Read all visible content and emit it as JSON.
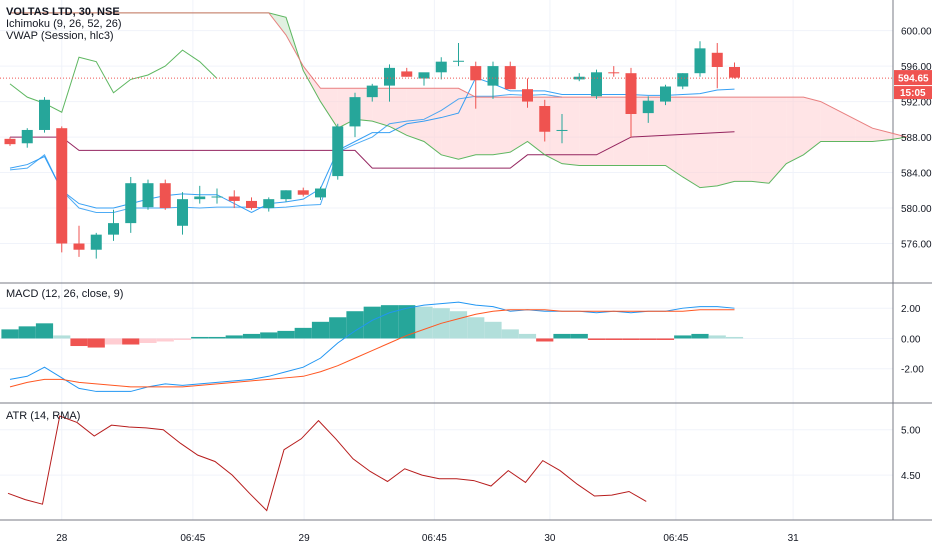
{
  "legend": {
    "symbol": "VOLTAS LTD, 30, NSE",
    "ichimoku": "Ichimoku (9, 26, 52, 26)",
    "vwap": "VWAP (Session, hlc3)"
  },
  "price_badge": {
    "price": "594.65",
    "countdown": "15:05"
  },
  "colors": {
    "up": "#26a69a",
    "down": "#ef5350",
    "macd": "#2196f3",
    "signal": "#ff5722",
    "tenkan": "#2196f3",
    "kijun": "#880e4f",
    "span_a": "#4caf50",
    "span_b": "#e57373",
    "chikou": "#4caf50",
    "vwap": "#2196f3",
    "atr": "#b71c1c",
    "cloud_bull": "#c8e6c9",
    "cloud_bear": "#ffcdd2"
  },
  "chart_data": [
    {
      "type": "candlestick",
      "title": "VOLTAS LTD, 30, NSE",
      "ylim": [
        572,
        603
      ],
      "y_ticks": [
        "576.00",
        "580.00",
        "584.00",
        "588.00",
        "592.00",
        "596.00",
        "600.00"
      ],
      "x_ticks": [
        "28",
        "06:45",
        "29",
        "06:45",
        "30",
        "06:45",
        "31"
      ],
      "last_price": 594.65,
      "candles": [
        [
          587.8,
          588.0,
          587.0,
          587.2
        ],
        [
          587.3,
          589.0,
          586.8,
          588.8
        ],
        [
          588.8,
          592.5,
          588.5,
          592.2
        ],
        [
          589.0,
          589.2,
          575.0,
          576.0
        ],
        [
          576.0,
          578.0,
          574.5,
          575.3
        ],
        [
          575.3,
          577.2,
          574.3,
          577.0
        ],
        [
          577.0,
          579.8,
          576.3,
          578.3
        ],
        [
          578.3,
          583.5,
          577.2,
          582.8
        ],
        [
          580.1,
          583.2,
          579.8,
          582.8
        ],
        [
          582.8,
          583.2,
          579.8,
          580.0
        ],
        [
          578.0,
          581.8,
          577.0,
          581.0
        ],
        [
          581.0,
          582.5,
          580.5,
          581.3
        ],
        [
          581.3,
          582.2,
          580.5,
          581.3
        ],
        [
          581.3,
          582.0,
          580.0,
          580.8
        ],
        [
          580.8,
          581.2,
          579.8,
          580.0
        ],
        [
          580.0,
          581.2,
          579.6,
          581.0
        ],
        [
          581.0,
          582.0,
          580.7,
          582.0
        ],
        [
          582.0,
          582.3,
          581.3,
          581.5
        ],
        [
          581.2,
          582.4,
          580.9,
          582.2
        ],
        [
          583.6,
          589.5,
          583.2,
          589.2
        ],
        [
          589.2,
          593.0,
          588.0,
          592.5
        ],
        [
          592.5,
          594.0,
          592.0,
          593.8
        ],
        [
          593.8,
          596.2,
          592.0,
          595.8
        ],
        [
          595.4,
          595.8,
          594.8,
          594.8
        ],
        [
          594.6,
          595.2,
          593.8,
          595.3
        ],
        [
          595.3,
          597.0,
          594.5,
          596.5
        ],
        [
          596.6,
          598.6,
          596.0,
          596.6
        ],
        [
          596.0,
          596.5,
          591.2,
          594.4
        ],
        [
          593.8,
          596.5,
          592.3,
          596.0
        ],
        [
          596.0,
          596.5,
          593.4,
          593.4
        ],
        [
          593.4,
          594.6,
          591.3,
          592.0
        ],
        [
          591.5,
          592.2,
          587.5,
          588.6
        ],
        [
          588.8,
          590.6,
          587.3,
          588.8
        ],
        [
          594.5,
          595.2,
          594.3,
          594.8
        ],
        [
          592.6,
          595.6,
          592.3,
          595.3
        ],
        [
          595.3,
          596.0,
          594.8,
          595.2
        ],
        [
          595.2,
          595.8,
          588.0,
          590.6
        ],
        [
          590.7,
          592.6,
          589.6,
          592.1
        ],
        [
          592.0,
          593.9,
          591.6,
          593.7
        ],
        [
          593.7,
          595.2,
          593.4,
          595.2
        ],
        [
          595.2,
          598.8,
          594.8,
          598.0
        ],
        [
          597.5,
          598.6,
          593.5,
          595.9
        ],
        [
          595.9,
          596.4,
          594.6,
          594.7
        ]
      ],
      "series": [
        {
          "name": "tenkan",
          "values": [
            [
              0,
              584.5
            ],
            [
              1,
              584.9
            ],
            [
              2,
              585.8
            ],
            [
              3,
              582.0
            ],
            [
              4,
              580.5
            ],
            [
              5,
              580.0
            ],
            [
              6,
              580.0
            ],
            [
              7,
              580.5
            ],
            [
              8,
              581.0
            ],
            [
              9,
              581.4
            ],
            [
              10,
              581.6
            ],
            [
              11,
              581.5
            ],
            [
              12,
              581.5
            ],
            [
              13,
              580.5
            ],
            [
              14,
              579.5
            ],
            [
              15,
              580.5
            ],
            [
              16,
              580.7
            ],
            [
              17,
              581.0
            ],
            [
              18,
              582.2
            ],
            [
              19,
              586.5
            ],
            [
              20,
              587.5
            ],
            [
              21,
              588.5
            ],
            [
              22,
              588.5
            ],
            [
              23,
              589.5
            ],
            [
              24,
              589.8
            ],
            [
              25,
              590.2
            ],
            [
              26,
              590.7
            ],
            [
              27,
              594.7
            ],
            [
              28,
              594.0
            ],
            [
              29,
              593.2
            ],
            [
              30,
              593.2
            ],
            [
              31,
              593.2
            ],
            [
              32,
              592.8
            ],
            [
              33,
              592.8
            ],
            [
              34,
              592.8
            ],
            [
              35,
              592.8
            ],
            [
              36,
              592.8
            ],
            [
              37,
              592.7
            ],
            [
              38,
              592.7
            ],
            [
              39,
              592.8
            ],
            [
              40,
              592.9
            ],
            [
              41,
              593.3
            ],
            [
              42,
              593.4
            ]
          ]
        },
        {
          "name": "kijun",
          "values": [
            [
              0,
              588.0
            ],
            [
              3,
              588.0
            ],
            [
              4,
              586.5
            ],
            [
              20,
              586.5
            ],
            [
              21,
              584.5
            ],
            [
              29,
              584.5
            ],
            [
              30,
              586.0
            ],
            [
              34,
              586.0
            ],
            [
              35,
              587.0
            ],
            [
              36,
              588.0
            ],
            [
              42,
              588.6
            ]
          ]
        },
        {
          "name": "vwap",
          "values": [
            [
              0,
              584.3
            ],
            [
              1,
              584.5
            ],
            [
              2,
              586.0
            ],
            [
              3,
              582.0
            ],
            [
              4,
              580.0
            ],
            [
              5,
              579.5
            ],
            [
              6,
              579.5
            ],
            [
              7,
              580.0
            ],
            [
              8,
              580.0
            ],
            [
              9,
              580.0
            ],
            [
              10,
              580.1
            ],
            [
              11,
              580.0
            ],
            [
              12,
              580.1
            ],
            [
              13,
              580.1
            ],
            [
              14,
              580.1
            ],
            [
              15,
              580.0
            ],
            [
              16,
              580.1
            ],
            [
              17,
              580.3
            ],
            [
              18,
              580.4
            ],
            [
              19,
              586.3
            ],
            [
              20,
              587.2
            ],
            [
              21,
              588.0
            ],
            [
              22,
              589.5
            ],
            [
              23,
              589.8
            ],
            [
              24,
              590.0
            ],
            [
              25,
              591.0
            ],
            [
              26,
              592.3
            ],
            [
              27,
              592.6
            ],
            [
              28,
              592.6
            ],
            [
              29,
              592.8
            ],
            [
              30,
              592.7
            ],
            [
              31,
              592.8
            ],
            [
              32,
              592.5
            ]
          ]
        },
        {
          "name": "chikou",
          "values": [
            [
              0,
              594.0
            ],
            [
              1,
              592.5
            ],
            [
              2,
              591.8
            ],
            [
              3,
              590.8
            ],
            [
              4,
              597.0
            ],
            [
              5,
              596.5
            ],
            [
              6,
              593.0
            ],
            [
              7,
              594.5
            ],
            [
              8,
              595.0
            ],
            [
              9,
              596.0
            ],
            [
              10,
              597.8
            ],
            [
              11,
              596.5
            ],
            [
              12,
              594.6
            ]
          ]
        },
        {
          "name": "span_a",
          "values": [
            [
              0,
              602.0
            ],
            [
              1,
              602.0
            ],
            [
              15,
              602.0
            ],
            [
              16,
              601.5
            ],
            [
              17,
              595.5
            ],
            [
              18,
              592.0
            ],
            [
              19,
              589.0
            ],
            [
              20,
              590.0
            ],
            [
              21,
              589.8
            ],
            [
              22,
              589.2
            ],
            [
              23,
              588.2
            ],
            [
              24,
              587.5
            ],
            [
              25,
              586.0
            ],
            [
              26,
              585.5
            ],
            [
              27,
              586.0
            ],
            [
              28,
              586.0
            ],
            [
              29,
              586.3
            ],
            [
              30,
              587.5
            ],
            [
              31,
              586.0
            ],
            [
              32,
              585.0
            ],
            [
              33,
              584.8
            ],
            [
              34,
              584.8
            ],
            [
              35,
              584.8
            ],
            [
              36,
              584.8
            ],
            [
              37,
              584.8
            ],
            [
              38,
              584.8
            ],
            [
              39,
              583.5
            ],
            [
              40,
              582.3
            ],
            [
              41,
              582.5
            ],
            [
              42,
              583.0
            ],
            [
              43,
              583.0
            ],
            [
              44,
              582.8
            ],
            [
              45,
              585.0
            ],
            [
              46,
              586.0
            ],
            [
              47,
              587.5
            ],
            [
              48,
              587.5
            ],
            [
              49,
              587.5
            ],
            [
              50,
              587.5
            ],
            [
              51,
              587.7
            ],
            [
              52,
              588.0
            ]
          ]
        },
        {
          "name": "span_b",
          "values": [
            [
              0,
              602.0
            ],
            [
              1,
              602.0
            ],
            [
              15,
              602.0
            ],
            [
              16,
              599.5
            ],
            [
              17,
              596.0
            ],
            [
              18,
              593.5
            ],
            [
              19,
              593.5
            ],
            [
              25,
              593.5
            ],
            [
              26,
              593.5
            ],
            [
              27,
              592.5
            ],
            [
              46,
              592.5
            ],
            [
              47,
              592.0
            ],
            [
              48,
              591.0
            ],
            [
              49,
              590.0
            ],
            [
              50,
              589.0
            ],
            [
              51,
              588.5
            ],
            [
              52,
              588.0
            ]
          ]
        }
      ]
    },
    {
      "type": "histogram+line",
      "title": "MACD (12, 26, close, 9)",
      "ylim": [
        -4.0,
        3.4
      ],
      "y_ticks": [
        "2.00",
        "0.00",
        "-2.00"
      ],
      "histogram": [
        0.6,
        0.8,
        1.0,
        0.2,
        -0.5,
        -0.6,
        -0.4,
        -0.4,
        -0.3,
        -0.2,
        -0.1,
        0.1,
        0.1,
        0.2,
        0.3,
        0.4,
        0.5,
        0.7,
        1.1,
        1.4,
        1.8,
        2.1,
        2.2,
        2.2,
        2.1,
        2.0,
        1.8,
        1.4,
        1.1,
        0.6,
        0.3,
        -0.2,
        0.3,
        0.3,
        -0.1,
        -0.1,
        -0.1,
        -0.1,
        -0.1,
        0.2,
        0.3,
        0.2,
        0.1
      ],
      "series": [
        {
          "name": "macd",
          "values": [
            -2.7,
            -2.5,
            -1.9,
            -2.6,
            -3.3,
            -3.5,
            -3.5,
            -3.5,
            -3.2,
            -3.0,
            -3.1,
            -3.0,
            -2.9,
            -2.8,
            -2.7,
            -2.5,
            -2.2,
            -1.9,
            -1.3,
            -0.3,
            0.5,
            1.2,
            1.7,
            2.0,
            2.2,
            2.3,
            2.4,
            2.2,
            2.1,
            1.8,
            1.9,
            1.8,
            1.8,
            1.8,
            1.7,
            1.8,
            1.7,
            1.8,
            1.8,
            2.0,
            2.1,
            2.1,
            2.0
          ]
        },
        {
          "name": "signal",
          "values": [
            -3.2,
            -2.9,
            -2.7,
            -2.7,
            -2.9,
            -3.0,
            -3.1,
            -3.2,
            -3.2,
            -3.2,
            -3.2,
            -3.1,
            -3.0,
            -2.9,
            -2.8,
            -2.7,
            -2.6,
            -2.5,
            -2.2,
            -1.8,
            -1.3,
            -0.8,
            -0.3,
            0.2,
            0.6,
            1.0,
            1.3,
            1.6,
            1.8,
            1.9,
            1.9,
            1.9,
            1.8,
            1.8,
            1.8,
            1.8,
            1.8,
            1.8,
            1.8,
            1.8,
            1.9,
            1.9,
            1.9
          ]
        }
      ]
    },
    {
      "type": "line",
      "title": "ATR (14, RMA)",
      "ylim": [
        4.05,
        5.25
      ],
      "y_ticks": [
        "5.00",
        "4.50"
      ],
      "series": [
        {
          "name": "atr",
          "values": [
            4.3,
            4.23,
            4.18,
            5.15,
            5.08,
            4.93,
            5.05,
            5.03,
            5.02,
            5.0,
            4.85,
            4.72,
            4.65,
            4.5,
            4.3,
            4.11,
            4.78,
            4.9,
            5.1,
            4.9,
            4.68,
            4.54,
            4.43,
            4.57,
            4.5,
            4.46,
            4.46,
            4.44,
            4.38,
            4.55,
            4.42,
            4.66,
            4.55,
            4.4,
            4.27,
            4.28,
            4.32,
            4.21
          ]
        }
      ]
    }
  ]
}
